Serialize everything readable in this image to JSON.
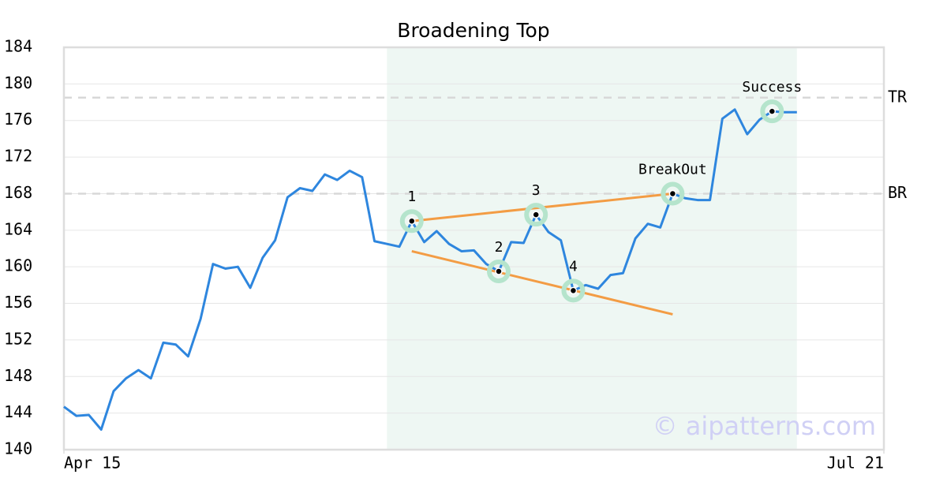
{
  "chart_data": {
    "type": "line",
    "title": "Broadening Top",
    "x": [
      0,
      1,
      2,
      3,
      4,
      5,
      6,
      7,
      8,
      9,
      10,
      11,
      12,
      13,
      14,
      15,
      16,
      17,
      18,
      19,
      20,
      21,
      22,
      23,
      24,
      25,
      26,
      27,
      28,
      29,
      30,
      31,
      32,
      33,
      34,
      35,
      36,
      37,
      38,
      39,
      40,
      41,
      42,
      43,
      44,
      45,
      46,
      47,
      48,
      49,
      50,
      51,
      52,
      53,
      54,
      55,
      56,
      57,
      58,
      59
    ],
    "series": [
      {
        "color": "#2e86de",
        "values": [
          144.7,
          143.7,
          143.8,
          142.2,
          146.4,
          147.8,
          148.7,
          147.8,
          151.7,
          151.5,
          150.2,
          154.3,
          160.3,
          159.8,
          160.0,
          157.7,
          161.0,
          162.9,
          167.6,
          168.6,
          168.3,
          170.1,
          169.5,
          170.5,
          169.8,
          162.8,
          162.5,
          162.2,
          165.0,
          162.7,
          163.9,
          162.5,
          161.7,
          161.8,
          160.3,
          159.5,
          162.7,
          162.6,
          165.7,
          163.8,
          162.9,
          157.4,
          158.0,
          157.6,
          159.1,
          159.3,
          163.1,
          164.7,
          164.3,
          168.0,
          167.5,
          167.3,
          167.3,
          176.2,
          177.2,
          174.5,
          176.1,
          177.0,
          176.9,
          176.9
        ]
      }
    ],
    "xlim": [
      0,
      66
    ],
    "xticks": [
      {
        "value": 0,
        "label": "Apr 15"
      },
      {
        "value": 66,
        "label": "Jul 21"
      }
    ],
    "ylim": [
      140,
      184
    ],
    "yticks": [
      140,
      144,
      148,
      152,
      156,
      160,
      164,
      168,
      172,
      176,
      180,
      184
    ],
    "grid": true,
    "shaded_region": {
      "x": [
        26,
        59
      ],
      "color": "#eef7f3"
    },
    "levels": [
      {
        "label": "TR",
        "value": 178.5
      },
      {
        "label": "BR",
        "value": 168
      }
    ],
    "trendlines": [
      {
        "color": "#f39c44",
        "x": [
          28,
          49
        ],
        "values": [
          165.0,
          168.0
        ]
      },
      {
        "color": "#f39c44",
        "x": [
          28,
          49
        ],
        "values": [
          161.7,
          154.8
        ]
      }
    ],
    "points": [
      {
        "label": "1",
        "x": 28,
        "y": 165.0
      },
      {
        "label": "2",
        "x": 35,
        "y": 159.5
      },
      {
        "label": "3",
        "x": 38,
        "y": 165.7
      },
      {
        "label": "4",
        "x": 41,
        "y": 157.4
      },
      {
        "label": "BreakOut",
        "x": 49,
        "y": 168.0
      },
      {
        "label": "Success",
        "x": 57,
        "y": 177.0
      }
    ],
    "watermark": "© aipatterns.com"
  }
}
